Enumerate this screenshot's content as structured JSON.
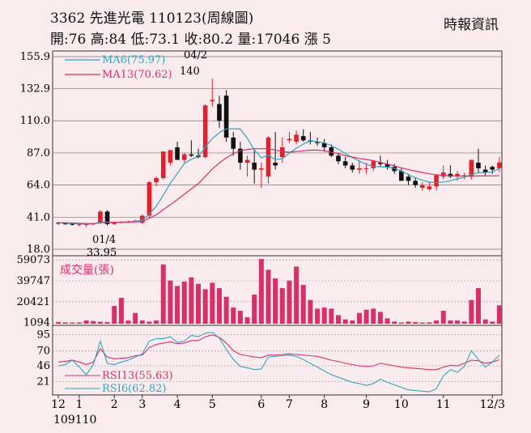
{
  "header": {
    "code": "3362",
    "name": "先進光電",
    "date": "110123(周線圖)",
    "ohlc_line": "開:76 高:84 低:73.1 收:80.2 量:17046 漲 5",
    "source": "時報資訊"
  },
  "chart_data": [
    {
      "type": "candlestick",
      "name": "price",
      "yticks": [
        18.0,
        41.0,
        64.0,
        87.0,
        110.0,
        132.9,
        155.9
      ],
      "ylim": [
        18.0,
        155.9
      ],
      "month_labels": [
        "12",
        "1",
        "2",
        "3",
        "4",
        "5",
        "6",
        "7",
        "8",
        "9",
        "10",
        "11",
        "12/3"
      ],
      "year_label": "109110",
      "annotations": [
        {
          "text": "04/2",
          "value": 140,
          "week": 22
        },
        {
          "text": "140",
          "value": 140,
          "week": 22
        },
        {
          "text": "01/4",
          "value": 33.95,
          "week": 5
        },
        {
          "text": "33.95",
          "value": 33.95,
          "week": 5
        }
      ],
      "ohlc": [
        [
          37,
          37.5,
          35.5,
          36.5
        ],
        [
          36.5,
          37,
          35.5,
          36.2
        ],
        [
          36.2,
          36.8,
          35,
          35.5
        ],
        [
          35.5,
          36.2,
          34.5,
          35.8
        ],
        [
          35.8,
          36.3,
          33.95,
          36
        ],
        [
          36,
          37,
          35,
          36.5
        ],
        [
          37,
          46,
          36,
          45
        ],
        [
          45,
          46,
          35,
          36
        ],
        [
          36,
          37.5,
          35.5,
          37
        ],
        [
          37,
          38,
          36.5,
          37.5
        ],
        [
          37.5,
          38.5,
          37,
          38
        ],
        [
          38,
          39,
          37.5,
          38.5
        ],
        [
          37,
          43,
          36,
          42
        ],
        [
          42,
          67,
          41,
          66
        ],
        [
          66,
          70,
          63,
          69
        ],
        [
          69,
          88,
          68,
          88
        ],
        [
          80,
          89,
          78,
          89
        ],
        [
          91,
          95,
          82,
          82
        ],
        [
          82,
          87,
          80,
          86
        ],
        [
          86,
          96,
          84,
          85
        ],
        [
          85,
          90,
          83,
          84
        ],
        [
          84,
          122,
          83,
          121
        ],
        [
          124,
          140,
          120,
          125
        ],
        [
          122,
          128,
          105,
          110
        ],
        [
          128,
          132,
          95,
          98
        ],
        [
          98,
          102,
          85,
          90
        ],
        [
          90,
          95,
          75,
          80
        ],
        [
          80,
          85,
          70,
          82
        ],
        [
          80,
          90,
          65,
          75
        ],
        [
          75,
          80,
          62,
          76
        ],
        [
          70,
          99,
          65,
          98
        ],
        [
          80,
          102,
          75,
          78
        ],
        [
          84,
          98,
          80,
          91
        ],
        [
          96,
          102,
          94,
          97
        ],
        [
          95,
          103,
          93,
          100
        ],
        [
          99,
          104,
          95,
          96
        ],
        [
          96,
          102,
          93,
          95
        ],
        [
          95,
          98,
          92,
          94
        ],
        [
          94,
          97,
          88,
          91
        ],
        [
          91,
          93,
          84,
          85
        ],
        [
          85,
          87,
          79,
          81
        ],
        [
          81,
          84,
          76,
          78
        ],
        [
          78,
          80,
          73,
          75
        ],
        [
          75,
          82,
          72,
          76
        ],
        [
          76,
          80,
          72,
          76
        ],
        [
          76,
          82,
          74,
          81
        ],
        [
          80,
          85,
          77,
          79
        ],
        [
          79,
          82,
          75,
          77
        ],
        [
          77,
          79,
          72,
          74
        ],
        [
          74,
          76,
          67,
          67
        ],
        [
          70,
          72,
          64,
          67
        ],
        [
          67,
          69,
          62,
          64
        ],
        [
          62,
          66,
          60,
          64
        ],
        [
          61,
          66,
          60,
          63
        ],
        [
          63,
          71,
          60,
          71
        ],
        [
          70,
          78,
          68,
          73
        ],
        [
          72,
          78,
          69,
          70
        ],
        [
          70,
          74,
          67,
          72
        ],
        [
          71,
          73,
          68,
          71
        ],
        [
          70,
          82,
          68,
          82
        ],
        [
          80,
          90,
          73,
          76
        ],
        [
          75,
          78,
          71,
          73
        ],
        [
          77,
          78,
          72,
          75
        ],
        [
          76,
          84,
          73.1,
          80.2
        ]
      ],
      "series": [
        {
          "name": "MA6(75.97)",
          "color": "#2aa7c0",
          "values": [
            37,
            36.8,
            36.5,
            36.3,
            36.1,
            36,
            37.5,
            37.5,
            37.4,
            37.4,
            37.4,
            38,
            38.6,
            43.2,
            48.8,
            56.8,
            65.3,
            72.3,
            79.3,
            82.5,
            84.3,
            91.2,
            97.2,
            101.5,
            104.2,
            104.3,
            104.1,
            97.4,
            89.2,
            83.5,
            85.3,
            82.2,
            82.8,
            86.8,
            90.4,
            93.4,
            95.7,
            94.9,
            94.3,
            92.2,
            89.7,
            86.4,
            83.7,
            81.1,
            78.8,
            77.3,
            77.1,
            76.8,
            76,
            74,
            71.5,
            69.3,
            67.4,
            66.1,
            65.8,
            66.2,
            67.1,
            68.4,
            69.6,
            71.7,
            72.8,
            73,
            73.3,
            75.97
          ]
        },
        {
          "name": "MA13(70.62)",
          "color": "#d8306a",
          "values": [
            37,
            37,
            36.8,
            36.6,
            36.4,
            36.3,
            37,
            37.2,
            37.3,
            37.4,
            37.4,
            37.6,
            38,
            40.2,
            42.7,
            46.4,
            50,
            53.6,
            57.4,
            61.2,
            65,
            70.2,
            75.5,
            79.8,
            83.5,
            86.5,
            88.5,
            89.5,
            90,
            90,
            90,
            89,
            88,
            87.5,
            88,
            88.5,
            89,
            89,
            88.5,
            87.5,
            86.5,
            85,
            84,
            83,
            82.3,
            81.4,
            80.2,
            79,
            77.7,
            76.3,
            75,
            74,
            73,
            72,
            71.3,
            71,
            70.5,
            70.5,
            70.4,
            70.4,
            70.5,
            70.5,
            70.6,
            70.62
          ]
        }
      ]
    },
    {
      "type": "bar",
      "name": "volume",
      "title": "成交量(張)",
      "yticks": [
        1094,
        20421,
        39747,
        59073
      ],
      "ylim": [
        0,
        60000
      ],
      "bar_color": "#d8306a",
      "values": [
        1500,
        1200,
        1000,
        1094,
        3000,
        2500,
        1800,
        1500,
        16500,
        24000,
        3000,
        10000,
        3000,
        2000,
        3000,
        55000,
        40000,
        35000,
        39000,
        43000,
        37000,
        32000,
        38000,
        33000,
        25000,
        15000,
        12000,
        6000,
        27000,
        60000,
        50000,
        42000,
        33000,
        40000,
        53000,
        36000,
        22000,
        14000,
        15000,
        14000,
        8000,
        4000,
        3000,
        10000,
        13000,
        14000,
        11000,
        5000,
        2000,
        1094,
        2000,
        1500,
        1000,
        1200,
        3000,
        12000,
        3000,
        3000,
        2000,
        22000,
        33000,
        4000,
        2000,
        17046
      ]
    },
    {
      "type": "line",
      "name": "rsi",
      "yticks": [
        21,
        46,
        70,
        95
      ],
      "ylim": [
        0,
        110
      ],
      "series": [
        {
          "name": "RSI13(55.63)",
          "color": "#d8306a",
          "values": [
            52,
            53,
            55,
            52,
            48,
            52,
            73,
            60,
            57,
            58,
            59,
            62,
            63,
            75,
            80,
            82,
            84,
            81,
            82,
            86,
            86,
            92,
            95,
            91,
            82,
            70,
            64,
            62,
            60,
            59,
            63,
            63,
            64,
            65,
            64,
            63,
            62,
            61,
            58,
            55,
            53,
            50,
            48,
            46,
            45,
            46,
            50,
            48,
            46,
            44,
            43,
            42,
            41,
            40,
            40,
            44,
            47,
            46,
            50,
            55,
            54,
            50,
            52,
            55.63
          ]
        },
        {
          "name": "RSI6(62.82)",
          "color": "#2aa7c0",
          "values": [
            46,
            48,
            55,
            44,
            32,
            48,
            85,
            50,
            48,
            52,
            55,
            60,
            65,
            85,
            89,
            89,
            92,
            83,
            85,
            94,
            92,
            98,
            99,
            90,
            72,
            56,
            45,
            43,
            40,
            41,
            60,
            61,
            62,
            63,
            61,
            56,
            50,
            44,
            38,
            32,
            28,
            24,
            20,
            18,
            15,
            18,
            25,
            20,
            16,
            12,
            8,
            7,
            6,
            5,
            10,
            30,
            40,
            36,
            45,
            70,
            56,
            44,
            52,
            62.82
          ]
        }
      ]
    }
  ]
}
